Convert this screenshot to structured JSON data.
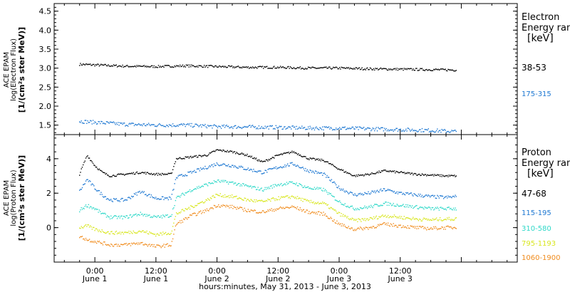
{
  "chart_data": [
    {
      "type": "scatter",
      "panel": "electron",
      "ylabel_lines": [
        "ACE EPAM",
        "log(Electron Flux)",
        "[1/(cm²s ster MeV)]"
      ],
      "legend_title_lines": [
        "Electron",
        "Energy ran",
        "[keV]"
      ],
      "legend_placement": "right",
      "ylim": [
        1.25,
        4.7
      ],
      "yticks": [
        1.5,
        2.0,
        2.5,
        3.0,
        3.5,
        4.0,
        4.5
      ],
      "ytick_labels": [
        "1.5",
        "2.0",
        "2.5",
        "3.0",
        "3.5",
        "4.0",
        "4.5"
      ],
      "series": [
        {
          "name": "38-53",
          "color": "#000000",
          "x": [
            -3,
            6,
            12,
            18,
            24,
            30,
            36,
            42,
            48,
            54,
            60,
            66,
            71
          ],
          "y": [
            3.1,
            3.05,
            3.04,
            3.06,
            3.04,
            3.02,
            3.02,
            3.0,
            3.0,
            2.98,
            2.97,
            2.96,
            2.95
          ]
        },
        {
          "name": "175-315",
          "color": "#1e78d2",
          "x": [
            -3,
            6,
            12,
            18,
            24,
            30,
            36,
            42,
            48,
            54,
            60,
            66,
            71
          ],
          "y": [
            1.6,
            1.52,
            1.5,
            1.5,
            1.46,
            1.45,
            1.44,
            1.42,
            1.42,
            1.4,
            1.38,
            1.36,
            1.33
          ]
        }
      ]
    },
    {
      "type": "scatter",
      "panel": "proton",
      "ylabel_lines": [
        "ACE EPAM",
        "log(Proton Flux)",
        "[1/(cm²s ster MeV)]"
      ],
      "legend_title_lines": [
        "Proton",
        "Energy ran",
        "[keV]"
      ],
      "legend_placement": "right",
      "ylim": [
        -2.0,
        5.4
      ],
      "yticks": [
        0,
        2,
        4
      ],
      "ytick_labels": [
        "0",
        "2",
        "4"
      ],
      "series": [
        {
          "name": "47-68",
          "color": "#000000",
          "x": [
            -3,
            -1.5,
            0,
            1.5,
            3,
            6,
            9,
            12,
            15,
            16,
            19,
            22,
            24,
            27,
            30,
            33,
            36,
            39,
            42,
            45,
            48,
            51,
            54,
            57,
            60,
            63,
            66,
            69,
            71
          ],
          "y": [
            3.1,
            4.2,
            3.6,
            3.2,
            3.0,
            3.1,
            3.2,
            3.1,
            3.1,
            4.0,
            4.1,
            4.2,
            4.5,
            4.4,
            4.2,
            3.8,
            4.2,
            4.4,
            4.0,
            3.9,
            3.4,
            3.0,
            3.1,
            3.3,
            3.2,
            3.1,
            3.05,
            3.0,
            3.0
          ]
        },
        {
          "name": "115-195",
          "color": "#1e78d2",
          "x": [
            -3,
            -1.5,
            0,
            1.5,
            3,
            6,
            9,
            12,
            15,
            16,
            19,
            22,
            24,
            27,
            30,
            33,
            36,
            39,
            42,
            45,
            48,
            51,
            54,
            57,
            60,
            63,
            66,
            69,
            71
          ],
          "y": [
            2.1,
            2.8,
            2.3,
            1.9,
            1.6,
            1.6,
            2.1,
            1.7,
            1.7,
            2.9,
            3.2,
            3.5,
            3.7,
            3.6,
            3.4,
            3.2,
            3.5,
            3.7,
            3.3,
            3.1,
            2.3,
            1.9,
            2.0,
            2.2,
            2.0,
            1.9,
            1.8,
            1.75,
            1.8
          ]
        },
        {
          "name": "310-580",
          "color": "#2ed8c8",
          "x": [
            -3,
            -1.5,
            0,
            1.5,
            3,
            6,
            9,
            12,
            15,
            16,
            19,
            22,
            24,
            27,
            30,
            33,
            36,
            39,
            42,
            45,
            48,
            51,
            54,
            57,
            60,
            63,
            66,
            69,
            71
          ],
          "y": [
            1.0,
            1.3,
            1.1,
            0.8,
            0.6,
            0.6,
            0.8,
            0.6,
            0.7,
            1.7,
            2.2,
            2.5,
            2.7,
            2.6,
            2.4,
            2.2,
            2.5,
            2.6,
            2.3,
            2.2,
            1.5,
            1.1,
            1.2,
            1.4,
            1.3,
            1.2,
            1.1,
            1.1,
            1.1
          ]
        },
        {
          "name": "795-1193",
          "color": "#d8e61e",
          "x": [
            -3,
            -1.5,
            0,
            1.5,
            3,
            6,
            9,
            12,
            15,
            16,
            19,
            22,
            24,
            27,
            30,
            33,
            36,
            39,
            42,
            45,
            48,
            51,
            54,
            57,
            60,
            63,
            66,
            69,
            71
          ],
          "y": [
            0.0,
            0.1,
            -0.1,
            -0.2,
            -0.3,
            -0.3,
            -0.2,
            -0.4,
            -0.3,
            0.8,
            1.2,
            1.6,
            1.9,
            1.8,
            1.6,
            1.5,
            1.7,
            1.8,
            1.5,
            1.4,
            0.8,
            0.4,
            0.5,
            0.7,
            0.6,
            0.5,
            0.45,
            0.5,
            0.5
          ]
        },
        {
          "name": "1060-1900",
          "color": "#f08c1e",
          "x": [
            -3,
            -1.5,
            0,
            1.5,
            3,
            6,
            9,
            12,
            15,
            16,
            19,
            22,
            24,
            27,
            30,
            33,
            36,
            39,
            42,
            45,
            48,
            51,
            54,
            57,
            60,
            63,
            66,
            69,
            71
          ],
          "y": [
            -0.5,
            -0.7,
            -0.8,
            -0.9,
            -1.0,
            -1.0,
            -0.9,
            -1.1,
            -1.0,
            0.2,
            0.7,
            1.0,
            1.3,
            1.2,
            1.0,
            0.9,
            1.1,
            1.2,
            0.9,
            0.8,
            0.2,
            -0.1,
            0.0,
            0.2,
            0.1,
            0.0,
            -0.05,
            0.0,
            0.0
          ]
        }
      ]
    }
  ],
  "x_axis": {
    "xlim": [
      -8,
      83
    ],
    "major_ticks": [
      {
        "t": 0,
        "time": "0:00",
        "date": "June 1"
      },
      {
        "t": 12,
        "time": "12:00",
        "date": "June 1"
      },
      {
        "t": 24,
        "time": "0:00",
        "date": "June 2"
      },
      {
        "t": 36,
        "time": "12:00",
        "date": "June 2"
      },
      {
        "t": 48,
        "time": "0:00",
        "date": "June 3"
      },
      {
        "t": 60,
        "time": "12:00",
        "date": "June 3"
      }
    ],
    "xlabel": "hours:minutes, May 31, 2013 - June  3, 2013"
  }
}
